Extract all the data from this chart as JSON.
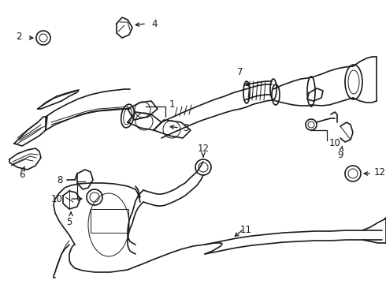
{
  "bg_color": "#ffffff",
  "line_color": "#1a1a1a",
  "fig_width": 4.9,
  "fig_height": 3.6,
  "dpi": 100,
  "fontsize": 7.5
}
